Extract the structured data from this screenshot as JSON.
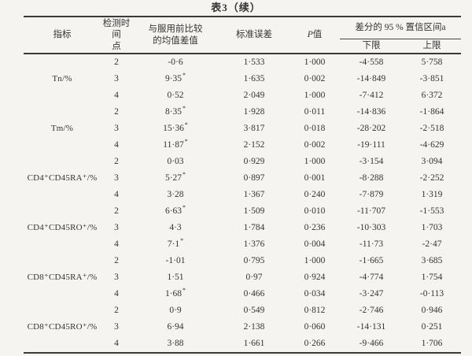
{
  "page": {
    "background": "#f5f4f1",
    "rule_color": "#3a3a3a",
    "text_color": "#333333"
  },
  "table": {
    "title": "表3（续）",
    "headers": {
      "indicator": "指标",
      "time_point_1": "检测时间",
      "time_point_2": "点",
      "mean_diff_1": "与服用前比较",
      "mean_diff_2": "的均值差值",
      "std_error": "标准误差",
      "p_italic": "P",
      "p_rest": "值",
      "ci": "差分的 95 % 置信区间a",
      "ci_lower": "下限",
      "ci_upper": "上限"
    },
    "groups": [
      {
        "indicator": "Tn/%",
        "rows": [
          {
            "time": "2",
            "diff": "-0·6",
            "star": false,
            "se": "1·533",
            "p": "1·000",
            "lower": "-4·558",
            "upper": "5·758"
          },
          {
            "time": "3",
            "diff": "9·35",
            "star": true,
            "se": "1·635",
            "p": "0·002",
            "lower": "-14·849",
            "upper": "-3·851"
          },
          {
            "time": "4",
            "diff": "0·52",
            "star": false,
            "se": "2·049",
            "p": "1·000",
            "lower": "-7·412",
            "upper": "6·372"
          }
        ]
      },
      {
        "indicator": "Tm/%",
        "rows": [
          {
            "time": "2",
            "diff": "8·35",
            "star": true,
            "se": "1·928",
            "p": "0·011",
            "lower": "-14·836",
            "upper": "-1·864"
          },
          {
            "time": "3",
            "diff": "15·36",
            "star": true,
            "se": "3·817",
            "p": "0·018",
            "lower": "-28·202",
            "upper": "-2·518"
          },
          {
            "time": "4",
            "diff": "11·87",
            "star": true,
            "se": "2·152",
            "p": "0·002",
            "lower": "-19·111",
            "upper": "-4·629"
          }
        ]
      },
      {
        "indicator": "CD4⁺CD45RA⁺/%",
        "rows": [
          {
            "time": "2",
            "diff": "0·03",
            "star": false,
            "se": "0·929",
            "p": "1·000",
            "lower": "-3·154",
            "upper": "3·094"
          },
          {
            "time": "3",
            "diff": "5·27",
            "star": true,
            "se": "0·897",
            "p": "0·001",
            "lower": "-8·288",
            "upper": "-2·252"
          },
          {
            "time": "4",
            "diff": "3·28",
            "star": false,
            "se": "1·367",
            "p": "0·240",
            "lower": "-7·879",
            "upper": "1·319"
          }
        ]
      },
      {
        "indicator": "CD4⁺CD45RO⁺/%",
        "rows": [
          {
            "time": "2",
            "diff": "6·63",
            "star": true,
            "se": "1·509",
            "p": "0·010",
            "lower": "-11·707",
            "upper": "-1·553"
          },
          {
            "time": "3",
            "diff": "4·3",
            "star": false,
            "se": "1·784",
            "p": "0·236",
            "lower": "-10·303",
            "upper": "1·703"
          },
          {
            "time": "4",
            "diff": "7·1",
            "star": true,
            "se": "1·376",
            "p": "0·004",
            "lower": "-11·73",
            "upper": "-2·47"
          }
        ]
      },
      {
        "indicator": "CD8⁺CD45RA⁺/%",
        "rows": [
          {
            "time": "2",
            "diff": "-1·01",
            "star": false,
            "se": "0·795",
            "p": "1·000",
            "lower": "-1·665",
            "upper": "3·685"
          },
          {
            "time": "3",
            "diff": "1·51",
            "star": false,
            "se": "0·97",
            "p": "0·924",
            "lower": "-4·774",
            "upper": "1·754"
          },
          {
            "time": "4",
            "diff": "1·68",
            "star": true,
            "se": "0·466",
            "p": "0·034",
            "lower": "-3·247",
            "upper": "-0·113"
          }
        ]
      },
      {
        "indicator": "CD8⁺CD45RO⁺/%",
        "rows": [
          {
            "time": "2",
            "diff": "0·9",
            "star": false,
            "se": "0·549",
            "p": "0·812",
            "lower": "-2·746",
            "upper": "0·946"
          },
          {
            "time": "3",
            "diff": "6·94",
            "star": false,
            "se": "2·138",
            "p": "0·060",
            "lower": "-14·131",
            "upper": "0·251"
          },
          {
            "time": "4",
            "diff": "3·88",
            "star": false,
            "se": "1·661",
            "p": "0·266",
            "lower": "-9·466",
            "upper": "1·706"
          }
        ]
      }
    ]
  }
}
